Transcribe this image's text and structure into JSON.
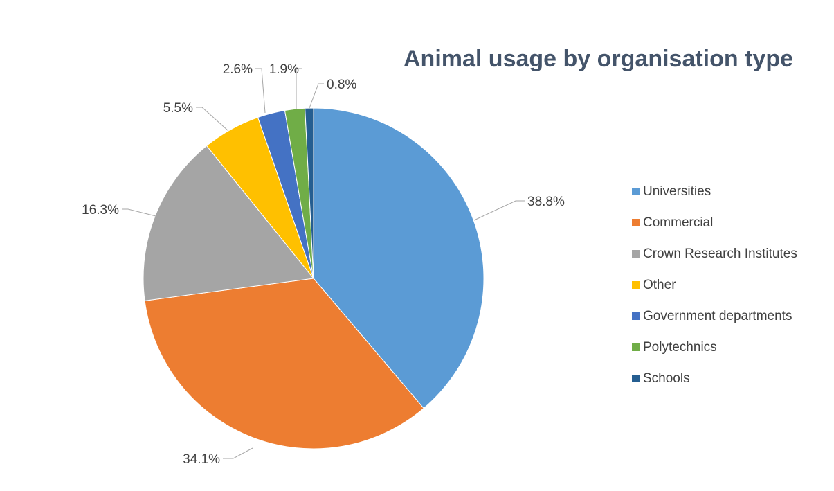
{
  "chart_data": {
    "type": "pie",
    "title": "Animal usage by organisation type",
    "slices": [
      {
        "name": "Universities",
        "value": 38.8,
        "label": "38.8%",
        "color": "#5b9bd5"
      },
      {
        "name": "Commercial",
        "value": 34.1,
        "label": "34.1%",
        "color": "#ed7d31"
      },
      {
        "name": "Crown Research Institutes",
        "value": 16.3,
        "label": "16.3%",
        "color": "#a5a5a5"
      },
      {
        "name": "Other",
        "value": 5.5,
        "label": "5.5%",
        "color": "#ffc000"
      },
      {
        "name": "Government departments",
        "value": 2.6,
        "label": "2.6%",
        "color": "#4472c4"
      },
      {
        "name": "Polytechnics",
        "value": 1.9,
        "label": "1.9%",
        "color": "#70ad47"
      },
      {
        "name": "Schools",
        "value": 0.8,
        "label": "0.8%",
        "color": "#255e91"
      }
    ],
    "legend_position": "right"
  }
}
